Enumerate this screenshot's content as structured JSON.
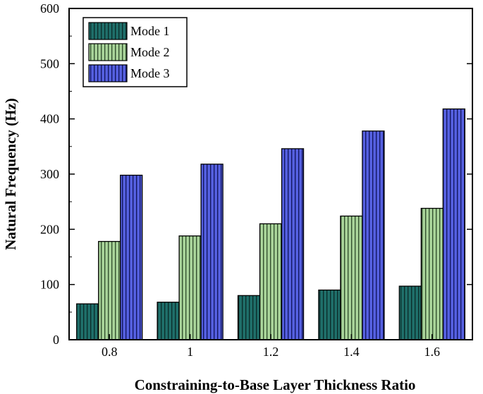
{
  "chart_data": {
    "type": "bar",
    "title": "",
    "xlabel": "Constraining-to-Base Layer Thickness Ratio",
    "ylabel": "Natural Frequency (Hz)",
    "categories": [
      "0.8",
      "1",
      "1.2",
      "1.4",
      "1.6"
    ],
    "ylim": [
      0,
      600
    ],
    "yticks": [
      "0",
      "100",
      "200",
      "300",
      "400",
      "500",
      "600"
    ],
    "series": [
      {
        "name": "Mode 1",
        "values": [
          65,
          68,
          80,
          90,
          97
        ],
        "color": "#1f6f6a"
      },
      {
        "name": "Mode 2",
        "values": [
          178,
          188,
          210,
          224,
          238
        ],
        "color": "#a9d49a"
      },
      {
        "name": "Mode 3",
        "values": [
          298,
          318,
          346,
          378,
          418
        ],
        "color": "#5560e0"
      }
    ],
    "legend": "top-left",
    "grid": false
  }
}
